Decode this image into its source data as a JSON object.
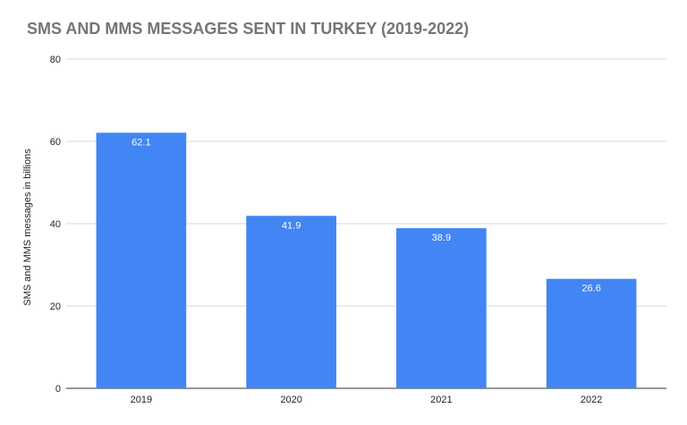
{
  "chart_data": {
    "type": "bar",
    "title": "SMS AND MMS MESSAGES SENT IN TURKEY (2019-2022)",
    "xlabel": "",
    "ylabel": "SMS and MMS messages in billions",
    "categories": [
      "2019",
      "2020",
      "2021",
      "2022"
    ],
    "values": [
      62.1,
      41.9,
      38.9,
      26.6
    ],
    "data_labels": [
      "62.1",
      "41.9",
      "38.9",
      "26.6"
    ],
    "ylim": [
      0,
      80
    ],
    "yticks": [
      0,
      20,
      40,
      60,
      80
    ],
    "grid": true,
    "bar_color": "#4285f4",
    "grid_color": "#d9d9d9",
    "axis_color": "#333333"
  }
}
